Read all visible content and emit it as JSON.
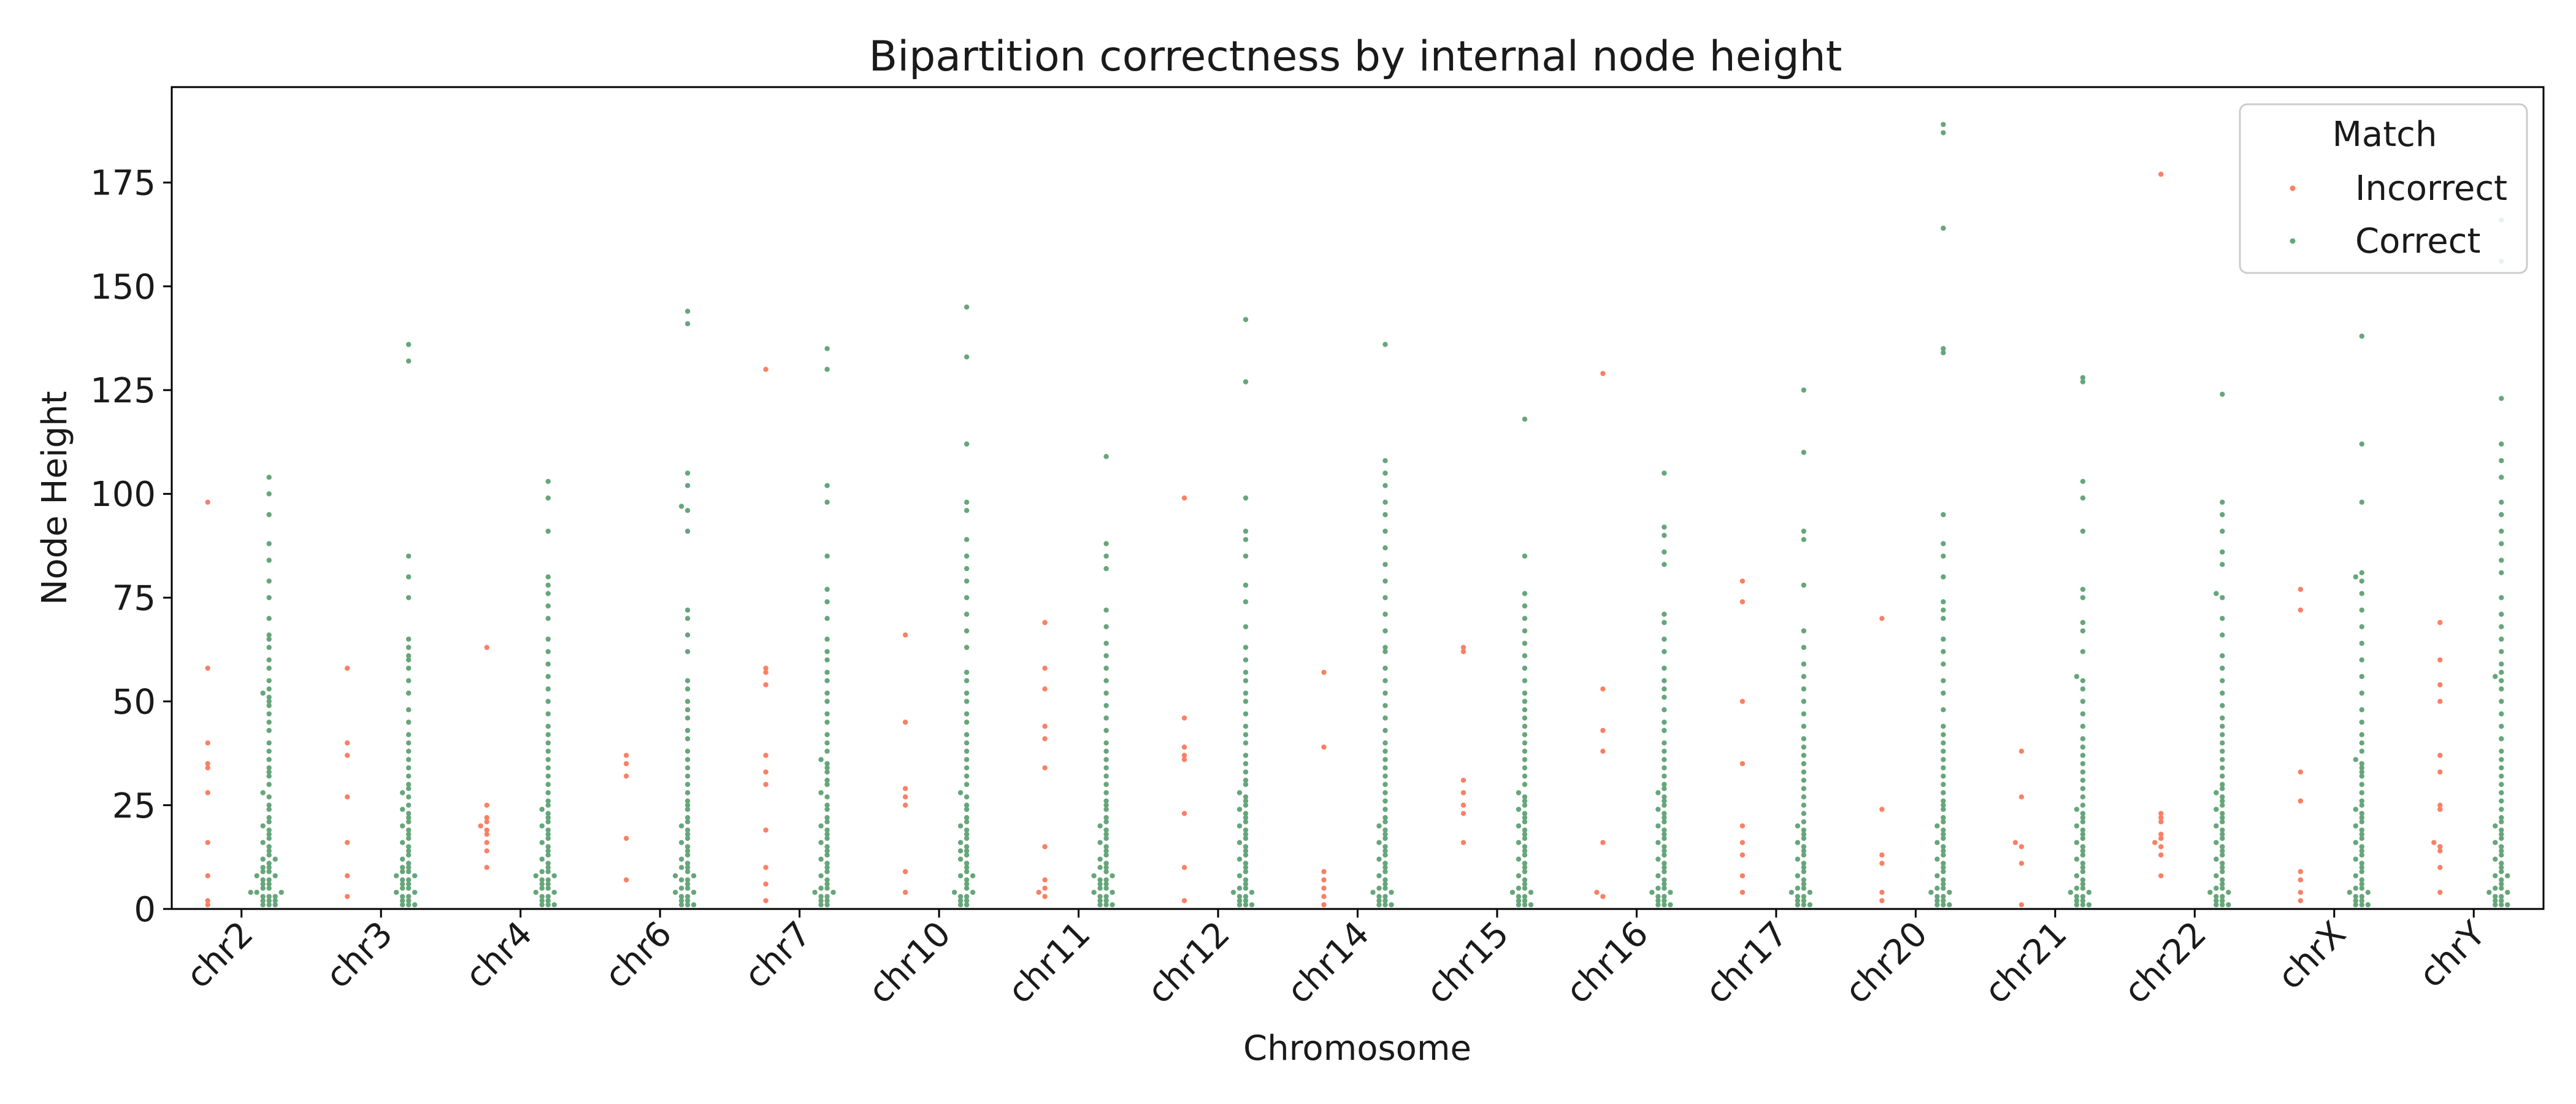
{
  "colors": {
    "incorrect": "#FA8065",
    "correct": "#66A67A",
    "axis": "#000000"
  },
  "chart_data": {
    "type": "scatter",
    "title": "Bipartition correctness by internal node height",
    "xlabel": "Chromosome",
    "ylabel": "Node Height",
    "ylim": [
      0,
      198
    ],
    "yticks": [
      0,
      25,
      50,
      75,
      100,
      125,
      150,
      175
    ],
    "categories": [
      "chr2",
      "chr3",
      "chr4",
      "chr6",
      "chr7",
      "chr10",
      "chr11",
      "chr12",
      "chr14",
      "chr15",
      "chr16",
      "chr17",
      "chr20",
      "chr21",
      "chr22",
      "chrX",
      "chrY"
    ],
    "legend": {
      "title": "Match",
      "position": "top-right",
      "entries": [
        "Incorrect",
        "Correct"
      ]
    },
    "series": [
      {
        "name": "Incorrect",
        "values": [
          [
            98,
            58,
            40,
            35,
            34,
            28,
            16,
            8,
            2,
            1
          ],
          [
            58,
            40,
            37,
            27,
            16,
            8,
            3
          ],
          [
            63,
            25,
            22,
            21,
            20,
            19,
            18,
            16,
            14,
            10
          ],
          [
            37,
            35,
            32,
            17,
            7
          ],
          [
            130,
            58,
            57,
            54,
            37,
            33,
            30,
            19,
            10,
            6,
            2
          ],
          [
            66,
            45,
            29,
            27,
            25,
            9,
            4
          ],
          [
            69,
            58,
            53,
            44,
            41,
            34,
            15,
            7,
            5,
            4,
            3
          ],
          [
            99,
            46,
            39,
            37,
            36,
            23,
            10,
            2
          ],
          [
            57,
            39,
            9,
            7,
            5,
            3,
            1
          ],
          [
            63,
            62,
            31,
            28,
            25,
            23,
            16
          ],
          [
            129,
            53,
            43,
            38,
            16,
            4,
            3
          ],
          [
            79,
            74,
            50,
            35,
            20,
            16,
            13,
            8,
            4
          ],
          [
            70,
            24,
            13,
            11,
            4,
            2
          ],
          [
            38,
            27,
            16,
            15,
            11,
            1
          ],
          [
            177,
            23,
            22,
            21,
            18,
            17,
            16,
            15,
            13,
            8
          ],
          [
            77,
            72,
            33,
            26,
            9,
            7,
            4,
            2
          ],
          [
            69,
            60,
            54,
            50,
            37,
            33,
            25,
            24,
            16,
            15,
            14,
            10,
            4
          ]
        ]
      },
      {
        "name": "Correct",
        "values": [
          [
            104,
            100,
            95,
            88,
            84,
            79,
            75,
            70,
            66,
            65,
            63,
            60,
            58,
            55,
            53,
            52,
            51,
            50,
            49,
            47,
            45,
            43,
            40,
            38,
            36,
            34,
            33,
            32,
            30,
            28,
            27,
            25,
            24,
            22,
            21,
            20,
            19,
            18,
            17,
            16,
            15,
            14,
            13,
            12,
            12,
            11,
            10,
            10,
            9,
            9,
            8,
            8,
            7,
            7,
            6,
            6,
            5,
            5,
            4,
            4,
            4,
            3,
            3,
            3,
            2,
            2,
            2,
            1,
            1,
            1
          ],
          [
            136,
            132,
            85,
            80,
            75,
            65,
            63,
            61,
            60,
            58,
            55,
            52,
            48,
            45,
            42,
            40,
            38,
            36,
            34,
            32,
            30,
            29,
            28,
            27,
            25,
            24,
            23,
            22,
            21,
            20,
            19,
            18,
            17,
            16,
            15,
            14,
            13,
            12,
            11,
            10,
            10,
            9,
            9,
            8,
            8,
            7,
            7,
            6,
            6,
            5,
            5,
            4,
            4,
            3,
            3,
            2,
            2,
            1,
            1,
            1
          ],
          [
            103,
            99,
            91,
            80,
            78,
            76,
            73,
            70,
            65,
            62,
            59,
            56,
            53,
            50,
            47,
            44,
            42,
            40,
            38,
            36,
            34,
            32,
            30,
            28,
            26,
            25,
            24,
            23,
            22,
            21,
            20,
            19,
            18,
            17,
            16,
            15,
            14,
            13,
            12,
            11,
            10,
            9,
            9,
            8,
            8,
            7,
            7,
            6,
            6,
            5,
            5,
            4,
            4,
            3,
            3,
            2,
            2,
            1,
            1,
            1
          ],
          [
            144,
            141,
            105,
            102,
            97,
            96,
            91,
            72,
            70,
            66,
            62,
            55,
            53,
            50,
            48,
            46,
            43,
            41,
            38,
            36,
            34,
            32,
            30,
            28,
            26,
            25,
            24,
            22,
            21,
            20,
            19,
            18,
            17,
            16,
            15,
            14,
            13,
            12,
            11,
            10,
            10,
            9,
            8,
            8,
            7,
            7,
            6,
            5,
            5,
            4,
            4,
            3,
            3,
            2,
            2,
            1,
            1,
            1
          ],
          [
            135,
            130,
            102,
            98,
            85,
            77,
            74,
            70,
            65,
            62,
            60,
            57,
            55,
            52,
            50,
            47,
            45,
            42,
            40,
            38,
            36,
            35,
            34,
            33,
            31,
            30,
            28,
            27,
            25,
            24,
            22,
            21,
            20,
            19,
            18,
            17,
            16,
            15,
            14,
            13,
            12,
            11,
            10,
            9,
            8,
            7,
            6,
            5,
            5,
            4,
            4,
            3,
            3,
            2,
            2,
            1,
            1
          ],
          [
            145,
            133,
            112,
            98,
            96,
            89,
            85,
            82,
            79,
            75,
            71,
            67,
            63,
            57,
            55,
            52,
            50,
            47,
            45,
            42,
            40,
            38,
            36,
            34,
            32,
            30,
            28,
            27,
            25,
            24,
            22,
            21,
            20,
            19,
            18,
            17,
            16,
            15,
            14,
            14,
            13,
            12,
            11,
            10,
            9,
            8,
            8,
            7,
            6,
            5,
            4,
            4,
            3,
            3,
            2,
            2,
            1,
            1
          ],
          [
            109,
            88,
            85,
            82,
            72,
            68,
            64,
            61,
            58,
            55,
            52,
            49,
            46,
            43,
            40,
            38,
            36,
            34,
            32,
            30,
            28,
            26,
            25,
            24,
            22,
            21,
            20,
            19,
            18,
            17,
            16,
            15,
            14,
            13,
            12,
            11,
            10,
            10,
            9,
            8,
            8,
            7,
            7,
            6,
            6,
            5,
            5,
            4,
            4,
            3,
            3,
            2,
            2,
            1,
            1,
            1
          ],
          [
            142,
            127,
            99,
            91,
            89,
            85,
            78,
            74,
            68,
            63,
            60,
            57,
            55,
            52,
            50,
            47,
            44,
            42,
            40,
            37,
            35,
            33,
            31,
            30,
            28,
            27,
            26,
            25,
            24,
            23,
            22,
            21,
            20,
            19,
            18,
            17,
            16,
            15,
            14,
            13,
            12,
            11,
            10,
            9,
            8,
            7,
            6,
            5,
            5,
            4,
            4,
            3,
            3,
            2,
            2,
            1,
            1,
            1
          ],
          [
            136,
            108,
            105,
            102,
            98,
            95,
            91,
            87,
            83,
            79,
            75,
            71,
            67,
            63,
            62,
            58,
            55,
            52,
            49,
            46,
            43,
            40,
            38,
            36,
            34,
            32,
            30,
            28,
            26,
            24,
            22,
            21,
            20,
            19,
            18,
            17,
            16,
            15,
            14,
            13,
            12,
            11,
            10,
            9,
            8,
            7,
            6,
            5,
            5,
            4,
            4,
            3,
            3,
            2,
            2,
            1,
            1,
            1
          ],
          [
            118,
            85,
            76,
            73,
            70,
            67,
            64,
            61,
            58,
            55,
            52,
            50,
            48,
            46,
            44,
            42,
            40,
            38,
            36,
            34,
            32,
            30,
            28,
            27,
            26,
            25,
            24,
            23,
            22,
            21,
            20,
            19,
            18,
            17,
            16,
            15,
            14,
            13,
            12,
            11,
            10,
            9,
            8,
            7,
            6,
            5,
            5,
            4,
            4,
            3,
            3,
            2,
            2,
            1,
            1,
            1
          ],
          [
            105,
            92,
            90,
            86,
            83,
            71,
            69,
            65,
            62,
            58,
            55,
            53,
            51,
            48,
            45,
            43,
            40,
            38,
            36,
            34,
            32,
            30,
            29,
            28,
            27,
            26,
            25,
            24,
            23,
            22,
            21,
            20,
            19,
            18,
            17,
            16,
            15,
            14,
            13,
            12,
            11,
            10,
            9,
            8,
            7,
            6,
            5,
            5,
            4,
            4,
            3,
            3,
            2,
            2,
            1,
            1,
            1
          ],
          [
            125,
            110,
            91,
            89,
            78,
            67,
            63,
            59,
            56,
            53,
            50,
            47,
            44,
            41,
            39,
            37,
            35,
            33,
            31,
            29,
            27,
            25,
            23,
            21,
            20,
            19,
            18,
            17,
            16,
            15,
            14,
            13,
            12,
            11,
            10,
            9,
            8,
            7,
            6,
            5,
            5,
            4,
            4,
            3,
            3,
            2,
            2,
            1,
            1,
            1
          ],
          [
            189,
            187,
            164,
            135,
            134,
            95,
            88,
            85,
            80,
            74,
            72,
            70,
            65,
            62,
            59,
            55,
            52,
            48,
            44,
            42,
            40,
            38,
            36,
            34,
            32,
            30,
            28,
            26,
            25,
            24,
            22,
            21,
            20,
            19,
            18,
            17,
            16,
            15,
            14,
            13,
            12,
            11,
            10,
            9,
            8,
            7,
            6,
            5,
            5,
            4,
            4,
            3,
            3,
            2,
            2,
            1,
            1,
            1
          ],
          [
            128,
            127,
            103,
            99,
            91,
            77,
            75,
            69,
            67,
            62,
            56,
            55,
            53,
            50,
            47,
            44,
            41,
            39,
            37,
            35,
            33,
            31,
            29,
            27,
            25,
            24,
            23,
            22,
            21,
            20,
            19,
            18,
            17,
            16,
            15,
            14,
            13,
            12,
            11,
            10,
            9,
            8,
            7,
            6,
            5,
            5,
            4,
            4,
            3,
            3,
            2,
            2,
            1,
            1,
            1
          ],
          [
            124,
            98,
            95,
            91,
            86,
            83,
            76,
            75,
            70,
            66,
            61,
            58,
            55,
            52,
            49,
            46,
            44,
            42,
            40,
            38,
            36,
            34,
            32,
            30,
            29,
            28,
            27,
            26,
            25,
            24,
            23,
            22,
            21,
            20,
            19,
            18,
            17,
            16,
            15,
            14,
            13,
            12,
            11,
            10,
            9,
            8,
            7,
            6,
            5,
            5,
            4,
            4,
            3,
            3,
            2,
            2,
            1,
            1,
            1
          ],
          [
            138,
            112,
            98,
            81,
            80,
            79,
            76,
            72,
            68,
            64,
            60,
            56,
            52,
            48,
            45,
            42,
            40,
            38,
            36,
            35,
            34,
            33,
            32,
            30,
            28,
            26,
            25,
            24,
            23,
            22,
            21,
            20,
            19,
            18,
            17,
            16,
            15,
            14,
            13,
            12,
            11,
            10,
            9,
            8,
            7,
            6,
            5,
            5,
            4,
            4,
            3,
            3,
            2,
            2,
            1,
            1,
            1
          ],
          [
            166,
            156,
            123,
            112,
            108,
            104,
            98,
            95,
            91,
            88,
            84,
            81,
            75,
            71,
            68,
            65,
            62,
            59,
            57,
            56,
            55,
            53,
            50,
            47,
            44,
            41,
            38,
            36,
            34,
            32,
            30,
            28,
            26,
            24,
            22,
            21,
            20,
            19,
            18,
            17,
            16,
            15,
            14,
            13,
            12,
            11,
            10,
            9,
            8,
            8,
            7,
            6,
            5,
            5,
            4,
            4,
            3,
            3,
            2,
            2,
            1,
            1,
            1
          ]
        ]
      }
    ]
  }
}
